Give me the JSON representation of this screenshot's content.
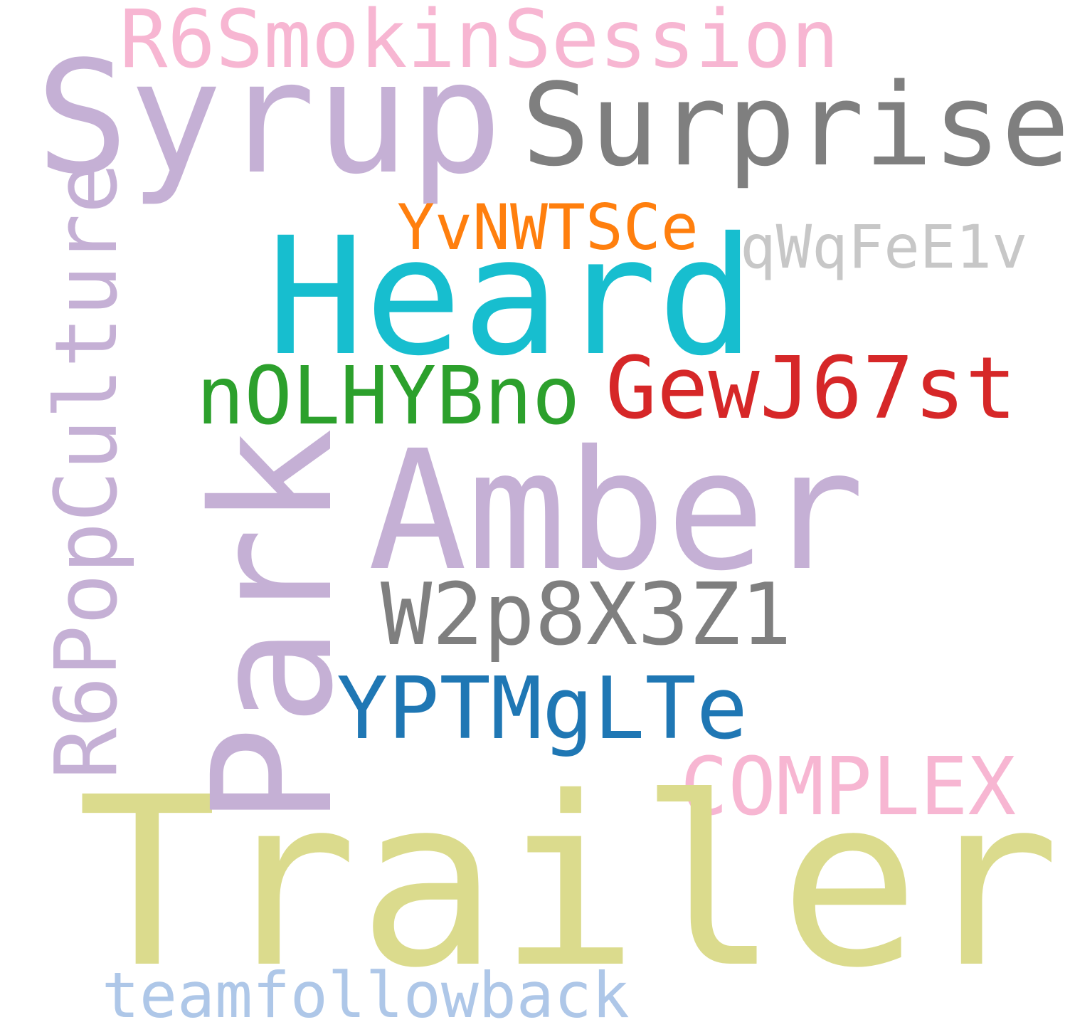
{
  "words": {
    "r6smokin": {
      "text": "R6SmokinSession",
      "color": "#f7b6d2"
    },
    "syrup": {
      "text": "Syrup",
      "color": "#c5b0d5"
    },
    "surprise": {
      "text": "Surprise",
      "color": "#7f7f7f"
    },
    "yvnwtsce": {
      "text": "YvNWTSCe",
      "color": "#ff7f0e"
    },
    "qwqfee1v": {
      "text": "qWqFeE1v",
      "color": "#c7c7c7"
    },
    "heard": {
      "text": "Heard",
      "color": "#17becf"
    },
    "nolhybno": {
      "text": "nOLHYBno",
      "color": "#2ca02c"
    },
    "gewj67st": {
      "text": "GewJ67st",
      "color": "#d62728"
    },
    "amber": {
      "text": "Amber",
      "color": "#c5b0d5"
    },
    "w2p8x3z1": {
      "text": "W2p8X3Z1",
      "color": "#7f7f7f"
    },
    "yptmglte": {
      "text": "YPTMgLTe",
      "color": "#1f77b4"
    },
    "complex": {
      "text": "COMPLEX",
      "color": "#f7b6d2"
    },
    "trailer": {
      "text": "Trailer",
      "color": "#dbdb8d"
    },
    "teamfollow": {
      "text": "teamfollowback",
      "color": "#aec7e8"
    },
    "r6pop": {
      "text": "R6PopCulture",
      "color": "#c5b0d5"
    },
    "park": {
      "text": "Park",
      "color": "#c5b0d5"
    }
  }
}
